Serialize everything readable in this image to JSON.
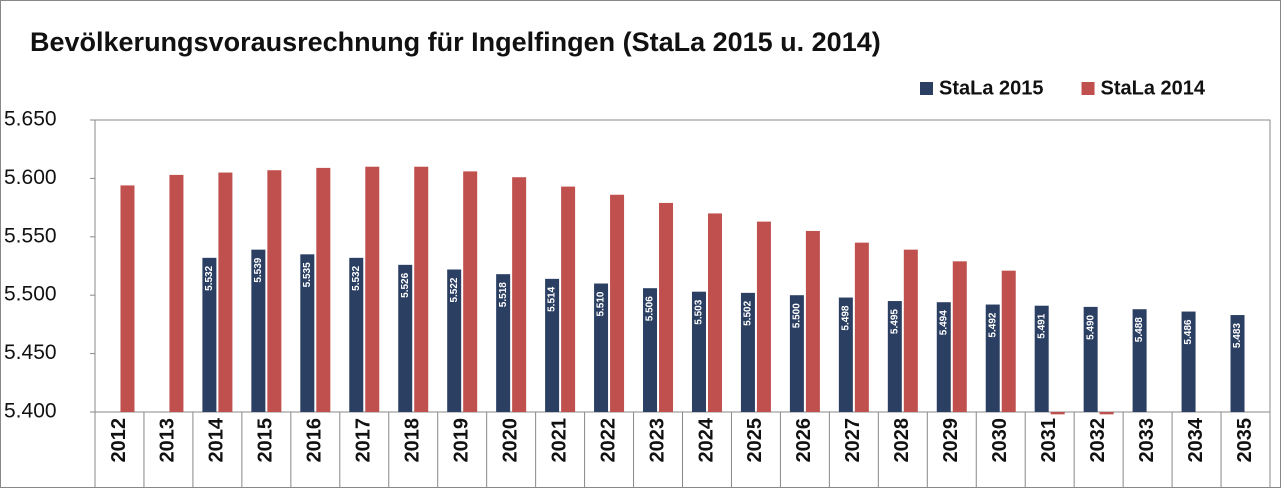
{
  "chart_data": {
    "type": "bar",
    "title": "Bevölkerungsvorausrechnung für Ingelfingen (StaLa 2015 u. 2014)",
    "categories": [
      "2012",
      "2013",
      "2014",
      "2015",
      "2016",
      "2017",
      "2018",
      "2019",
      "2020",
      "2021",
      "2022",
      "2023",
      "2024",
      "2025",
      "2026",
      "2027",
      "2028",
      "2029",
      "2030",
      "2031",
      "2032",
      "2033",
      "2034",
      "2035"
    ],
    "series": [
      {
        "name": "StaLa 2015",
        "color": "#2b3f63",
        "values": [
          null,
          null,
          5532,
          5539,
          5535,
          5532,
          5526,
          5522,
          5518,
          5514,
          5510,
          5506,
          5503,
          5502,
          5500,
          5498,
          5495,
          5494,
          5492,
          5491,
          5490,
          5488,
          5486,
          5483
        ],
        "value_labels": [
          null,
          null,
          "5.532",
          "5.539",
          "5.535",
          "5.532",
          "5.526",
          "5.522",
          "5.518",
          "5.514",
          "5.510",
          "5.506",
          "5.503",
          "5.502",
          "5.500",
          "5.498",
          "5.495",
          "5.494",
          "5.492",
          "5.491",
          "5.490",
          "5.488",
          "5.486",
          "5.483"
        ]
      },
      {
        "name": "StaLa 2014",
        "color": "#c0504d",
        "values": [
          5594,
          5603,
          5605,
          5607,
          5609,
          5610,
          5610,
          5606,
          5601,
          5593,
          5586,
          5579,
          5570,
          5563,
          5555,
          5545,
          5539,
          5529,
          5521,
          5398,
          5398,
          null,
          null,
          null
        ]
      }
    ],
    "ylim": [
      5400,
      5650
    ],
    "yticks": [
      {
        "value": 5400,
        "label": "5.400"
      },
      {
        "value": 5450,
        "label": "5.450"
      },
      {
        "value": 5500,
        "label": "5.500"
      },
      {
        "value": 5550,
        "label": "5.550"
      },
      {
        "value": 5600,
        "label": "5.600"
      },
      {
        "value": 5650,
        "label": "5.650"
      }
    ],
    "grid": false,
    "legend": "top-right"
  }
}
